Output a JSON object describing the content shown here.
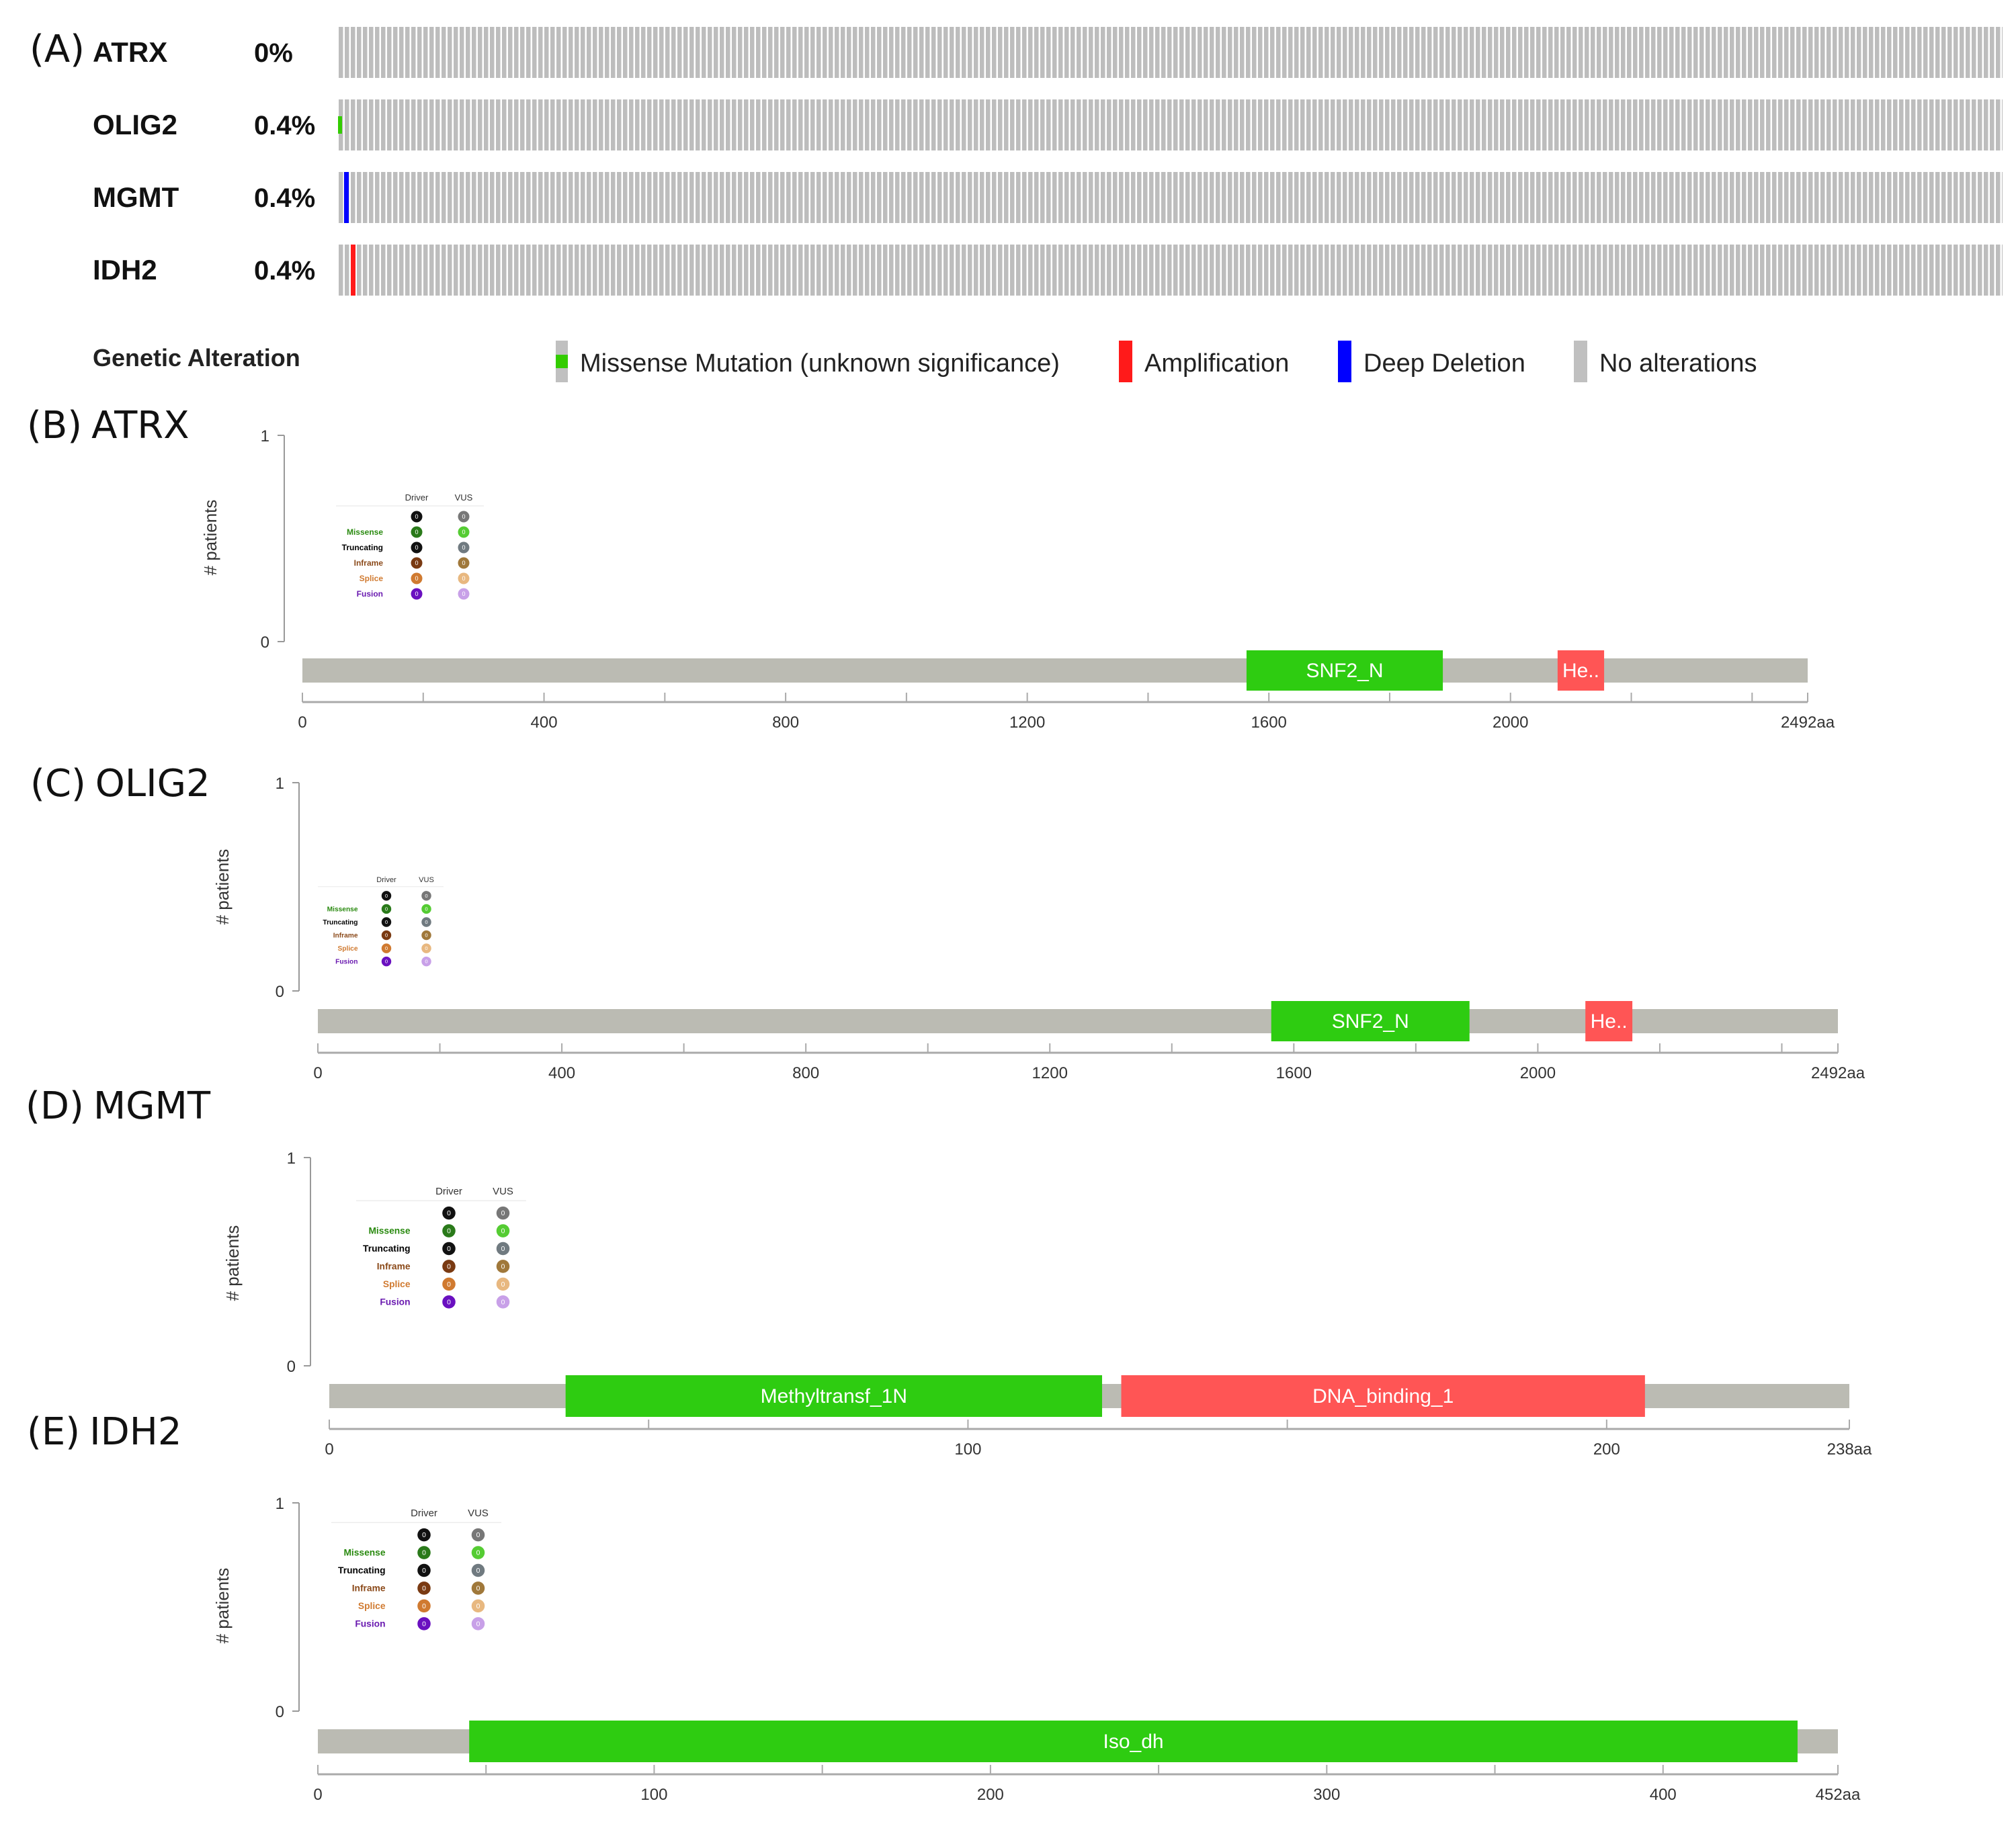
{
  "chart_data": [
    {
      "type": "oncoprint",
      "panel": "(A)",
      "genes": [
        {
          "name": "ATRX",
          "percent": "0%",
          "alterations": []
        },
        {
          "name": "OLIG2",
          "percent": "0.4%",
          "alterations": [
            {
              "sample_index": 0,
              "type": "Missense Mutation (unknown significance)"
            }
          ]
        },
        {
          "name": "MGMT",
          "percent": "0.4%",
          "alterations": [
            {
              "sample_index": 1,
              "type": "Deep Deletion"
            }
          ]
        },
        {
          "name": "IDH2",
          "percent": "0.4%",
          "alterations": [
            {
              "sample_index": 2,
              "type": "Amplification"
            }
          ]
        }
      ],
      "legend_title": "Genetic Alteration",
      "legend": [
        {
          "label": "Missense Mutation (unknown significance)",
          "color": "#33cc00",
          "kind": "missense"
        },
        {
          "label": "Amplification",
          "color": "#ff1a1a",
          "kind": "amplification"
        },
        {
          "label": "Deep Deletion",
          "color": "#0000ff",
          "kind": "deletion"
        },
        {
          "label": "No alterations",
          "color": "#c0c0c0",
          "kind": "none"
        }
      ]
    },
    {
      "type": "lollipop",
      "panel": "(B)",
      "gene": "ATRX",
      "length": 2492,
      "length_label": "2492aa",
      "xticks": [
        0,
        400,
        800,
        1200,
        1600,
        2000
      ],
      "minor_ticks": [
        200,
        600,
        1000,
        1400,
        1800,
        2200,
        2400
      ],
      "ylabel": "# patients",
      "ylim": [
        0,
        1
      ],
      "domains": [
        {
          "name": "SNF2_N",
          "start": 1563,
          "end": 1888,
          "color": "#2ecc11"
        },
        {
          "name": "He..",
          "start": 2078,
          "end": 2155,
          "color": "#ff5555"
        }
      ]
    },
    {
      "type": "lollipop",
      "panel": "(C)",
      "gene": "OLIG2",
      "length": 2492,
      "length_label": "2492aa",
      "xticks": [
        0,
        400,
        800,
        1200,
        1600,
        2000
      ],
      "minor_ticks": [
        200,
        600,
        1000,
        1400,
        1800,
        2200,
        2400
      ],
      "ylabel": "# patients",
      "ylim": [
        0,
        1
      ],
      "domains": [
        {
          "name": "SNF2_N",
          "start": 1563,
          "end": 1888,
          "color": "#2ecc11"
        },
        {
          "name": "He..",
          "start": 2078,
          "end": 2155,
          "color": "#ff5555"
        }
      ]
    },
    {
      "type": "lollipop",
      "panel": "(D)",
      "gene": "MGMT",
      "length": 238,
      "length_label": "238aa",
      "xticks": [
        0,
        100,
        200
      ],
      "minor_ticks": [
        50,
        150
      ],
      "ylabel": "# patients",
      "ylim": [
        0,
        1
      ],
      "domains": [
        {
          "name": "Methyltransf_1N",
          "start": 37,
          "end": 121,
          "color": "#2ecc11"
        },
        {
          "name": "DNA_binding_1",
          "start": 124,
          "end": 206,
          "color": "#ff5555"
        }
      ]
    },
    {
      "type": "lollipop",
      "panel": "(E)",
      "gene": "IDH2",
      "length": 452,
      "length_label": "452aa",
      "xticks": [
        0,
        100,
        200,
        300,
        400
      ],
      "minor_ticks": [
        50,
        150,
        250,
        350
      ],
      "ylabel": "# patients",
      "ylim": [
        0,
        1
      ],
      "domains": [
        {
          "name": "Iso_dh",
          "start": 45,
          "end": 440,
          "color": "#2ecc11"
        }
      ]
    }
  ],
  "mini_legend": {
    "headers": [
      "Driver",
      "VUS"
    ],
    "rows": [
      {
        "label": "",
        "driver": "0",
        "vus": "0",
        "label_color": "#000000",
        "driver_color": "#111111",
        "vus_color": "#777777"
      },
      {
        "label": "Missense",
        "driver": "0",
        "vus": "0",
        "label_color": "#2a8a10",
        "driver_color": "#2a7a1a",
        "vus_color": "#55cc33"
      },
      {
        "label": "Truncating",
        "driver": "0",
        "vus": "0",
        "label_color": "#000000",
        "driver_color": "#111111",
        "vus_color": "#707a80"
      },
      {
        "label": "Inframe",
        "driver": "0",
        "vus": "0",
        "label_color": "#8b4a1a",
        "driver_color": "#7a3a12",
        "vus_color": "#a0783a"
      },
      {
        "label": "Splice",
        "driver": "0",
        "vus": "0",
        "label_color": "#d07a30",
        "driver_color": "#d07a30",
        "vus_color": "#e8b880"
      },
      {
        "label": "Fusion",
        "driver": "0",
        "vus": "0",
        "label_color": "#6a1ab0",
        "driver_color": "#6a10c0",
        "vus_color": "#c8a0e8"
      }
    ]
  }
}
